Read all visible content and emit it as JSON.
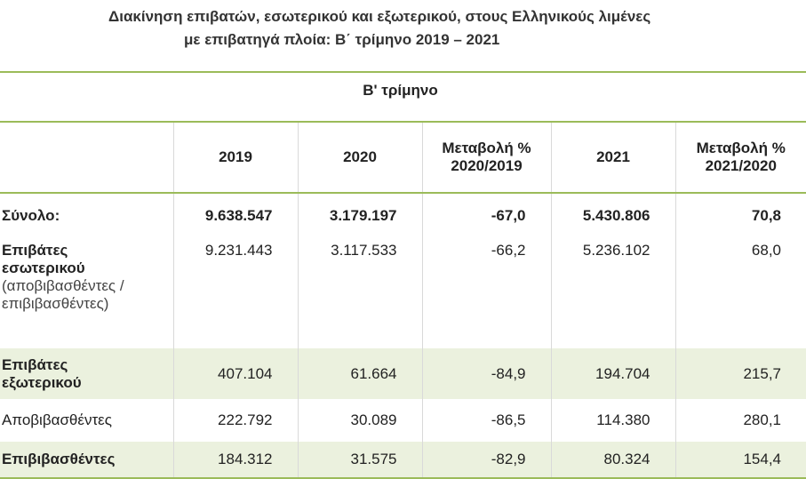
{
  "title": [
    "Διακίνηση επιβατών, εσωτερικού και εξωτερικού, στους Ελληνικούς λιμένες",
    "με επιβατηγά πλοία: Β΄ τρίμηνο 2019 – 2021"
  ],
  "table": {
    "group_header": "Β' τρίμηνο",
    "columns": [
      [
        "2019"
      ],
      [
        "2020"
      ],
      [
        "Μεταβολή %",
        "2020/2019"
      ],
      [
        "2021"
      ],
      [
        "Μεταβολή %",
        "2021/2020"
      ]
    ],
    "rows": [
      {
        "label": "Σύνολο:",
        "values": [
          "9.638.547",
          "3.179.197",
          "-67,0",
          "5.430.806",
          "70,8"
        ],
        "bold": true,
        "shaded": false
      },
      {
        "label": "Επιβάτες εσωτερικού",
        "note": "(αποβιβασθέντες / επιβιβασθέντες)",
        "values": [
          "9.231.443",
          "3.117.533",
          "-66,2",
          "5.236.102",
          "68,0"
        ],
        "bold": false,
        "shaded": false
      },
      {
        "label": "Επιβάτες εξωτερικού",
        "values": [
          "407.104",
          "61.664",
          "-84,9",
          "194.704",
          "215,7"
        ],
        "bold": false,
        "shaded": true
      },
      {
        "label": "Αποβιβασθέντες",
        "values": [
          "222.792",
          "30.089",
          "-86,5",
          "114.380",
          "280,1"
        ],
        "bold": false,
        "shaded": false
      },
      {
        "label": "Επιβιβασθέντες",
        "values": [
          "184.312",
          "31.575",
          "-82,9",
          "80.324",
          "154,4"
        ],
        "bold": false,
        "shaded": true
      }
    ]
  }
}
